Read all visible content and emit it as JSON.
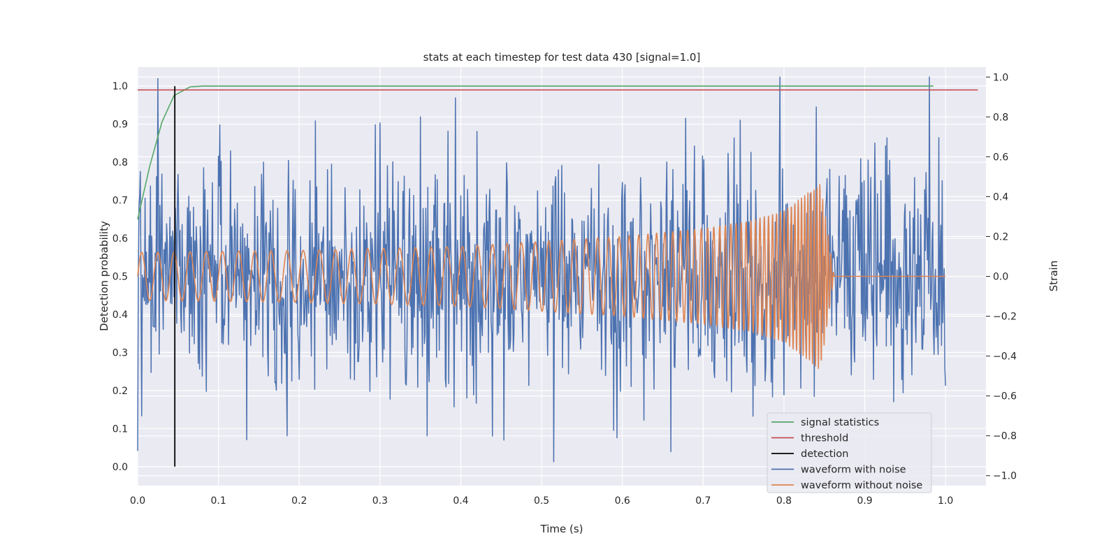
{
  "chart_data": {
    "type": "line",
    "title": "stats at each timestep for test data 430 [signal=1.0]",
    "xlabel": "Time (s)",
    "ylabel_left": "Detection probability",
    "ylabel_right": "Strain",
    "xlim": [
      0.0,
      1.05
    ],
    "ylim_left": [
      -0.05,
      1.05
    ],
    "ylim_right": [
      -1.05,
      1.05
    ],
    "x_ticks": [
      0.0,
      0.1,
      0.2,
      0.3,
      0.4,
      0.5,
      0.6,
      0.7,
      0.8,
      0.9,
      1.0
    ],
    "x_tick_labels": [
      "0.0",
      "0.1",
      "0.2",
      "0.3",
      "0.4",
      "0.5",
      "0.6",
      "0.7",
      "0.8",
      "0.9",
      "1.0"
    ],
    "y_left_ticks": [
      0.0,
      0.1,
      0.2,
      0.3,
      0.4,
      0.5,
      0.6,
      0.7,
      0.8,
      0.9,
      1.0
    ],
    "y_left_tick_labels": [
      "0.0",
      "0.1",
      "0.2",
      "0.3",
      "0.4",
      "0.5",
      "0.6",
      "0.7",
      "0.8",
      "0.9",
      "1.0"
    ],
    "y_right_ticks": [
      -1.0,
      -0.8,
      -0.6,
      -0.4,
      -0.2,
      0.0,
      0.2,
      0.4,
      0.6,
      0.8,
      1.0
    ],
    "y_right_tick_labels": [
      "−1.0",
      "−0.8",
      "−0.6",
      "−0.4",
      "−0.2",
      "0.0",
      "0.2",
      "0.4",
      "0.6",
      "0.8",
      "1.0"
    ],
    "grid": true,
    "legend_position": "bottom-right",
    "series": [
      {
        "name": "signal statistics",
        "axis": "left",
        "color": "#55a868",
        "x": [
          0.0,
          0.015,
          0.03,
          0.045,
          0.065,
          0.08,
          0.1,
          0.2,
          0.3,
          0.4,
          0.5,
          0.6,
          0.7,
          0.8,
          0.9,
          0.985
        ],
        "y": [
          0.65,
          0.79,
          0.905,
          0.975,
          0.998,
          1.0,
          1.0,
          1.0,
          1.0,
          1.0,
          1.0,
          1.0,
          1.0,
          1.0,
          1.0,
          1.0
        ]
      },
      {
        "name": "threshold",
        "axis": "left",
        "color": "#c44e52",
        "x": [
          0.0,
          1.04
        ],
        "y": [
          0.99,
          0.99
        ]
      },
      {
        "name": "detection",
        "axis": "left",
        "color": "#000000",
        "x": [
          0.046,
          0.046
        ],
        "y": [
          0.0,
          1.0
        ]
      },
      {
        "name": "waveform with noise",
        "axis": "right",
        "color": "#4c72b0",
        "noise_std": 0.28,
        "peaks": [
          {
            "x": 0.005,
            "y": -0.7
          },
          {
            "x": 0.135,
            "y": -0.82
          },
          {
            "x": 0.185,
            "y": -0.8
          },
          {
            "x": 0.22,
            "y": 0.78
          },
          {
            "x": 0.3,
            "y": 0.77
          },
          {
            "x": 0.35,
            "y": 0.8
          },
          {
            "x": 0.358,
            "y": -0.8
          },
          {
            "x": 0.515,
            "y": -0.93
          },
          {
            "x": 0.66,
            "y": -0.88
          },
          {
            "x": 0.795,
            "y": 1.0
          },
          {
            "x": 0.84,
            "y": 0.85
          }
        ],
        "x_range": [
          0.0,
          1.0
        ]
      },
      {
        "name": "waveform without noise",
        "axis": "right",
        "color": "#dd8452",
        "envelope": {
          "x": [
            0.0,
            0.2,
            0.4,
            0.6,
            0.7,
            0.76,
            0.8,
            0.83,
            0.845,
            0.855,
            0.862,
            1.0
          ],
          "amplitude": [
            0.12,
            0.13,
            0.15,
            0.2,
            0.24,
            0.28,
            0.33,
            0.42,
            0.47,
            0.2,
            0.0,
            0.0
          ]
        },
        "frequency_hz": [
          50,
          300
        ],
        "x_range": [
          0.0,
          1.0
        ]
      }
    ]
  }
}
